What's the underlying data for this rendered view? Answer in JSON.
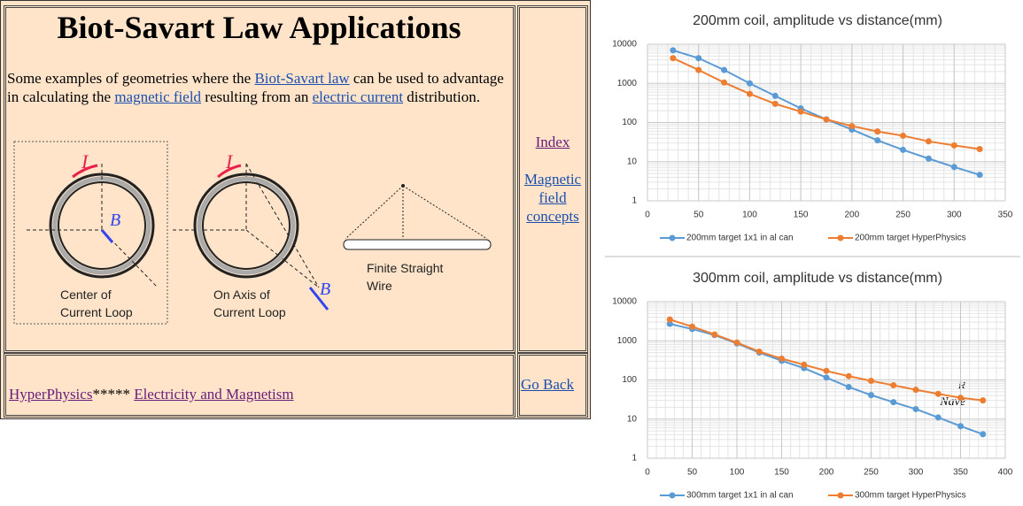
{
  "page": {
    "title": "Biot-Savart Law Applications",
    "intro": {
      "text1": "Some examples of geometries where the",
      "link1": "Biot-Savart law",
      "text2": "can be used to advantage in calculating the",
      "link2": "magnetic field",
      "text3": "resulting from an",
      "link3": "electric current",
      "text4": "distribution."
    },
    "diagram": {
      "loop1_current": "I",
      "loop1_field": "B",
      "loop2_current": "I",
      "loop2_field": "B",
      "loop1_caption": [
        "Center of",
        "Current Loop"
      ],
      "loop2_caption": [
        "On Axis of",
        "Current Loop"
      ],
      "wire_caption": [
        "Finite Straight",
        "Wire"
      ]
    },
    "nav": {
      "index": "Index",
      "concepts": "Magnetic field concepts",
      "back": "Go Back"
    },
    "footer": {
      "site": "HyperPhysics",
      "stars": "*****",
      "section": "Electricity and Magnetism",
      "author_initial": "R",
      "author_name": "Nave"
    }
  },
  "chart_data": [
    {
      "type": "line",
      "title": "200mm coil, amplitude vs distance(mm)",
      "log_y": true,
      "grid": true,
      "minor_grid": true,
      "legend": "bottom",
      "x": [
        25,
        50,
        75,
        100,
        125,
        150,
        175,
        200,
        225,
        250,
        275,
        300,
        325
      ],
      "xlim": [
        0,
        350
      ],
      "xticks": [
        0,
        50,
        100,
        150,
        200,
        250,
        300,
        350
      ],
      "ylim": [
        1,
        10000
      ],
      "yticks": [
        1,
        10,
        100,
        1000,
        10000
      ],
      "series": [
        {
          "name": "200mm target 1x1 in al can",
          "color": "#5b9bd5",
          "values": [
            7000,
            4400,
            2200,
            1000,
            480,
            230,
            120,
            66,
            35,
            20,
            12,
            7.3,
            4.6
          ]
        },
        {
          "name": "200mm target HyperPhysics",
          "color": "#ed7d31",
          "values": [
            4400,
            2200,
            1050,
            540,
            300,
            190,
            120,
            81,
            59,
            46,
            33,
            26,
            21
          ]
        }
      ]
    },
    {
      "type": "line",
      "title": "300mm coil, amplitude vs distance(mm)",
      "log_y": true,
      "grid": true,
      "minor_grid": true,
      "legend": "bottom",
      "x": [
        25,
        50,
        75,
        100,
        125,
        150,
        175,
        200,
        225,
        250,
        275,
        300,
        325,
        350,
        375
      ],
      "xlim": [
        0,
        400
      ],
      "xticks": [
        0,
        50,
        100,
        150,
        200,
        250,
        300,
        350,
        400
      ],
      "ylim": [
        1,
        10000
      ],
      "yticks": [
        1,
        10,
        100,
        1000,
        10000
      ],
      "series": [
        {
          "name": "300mm target 1x1 in al can",
          "color": "#5b9bd5",
          "values": [
            2700,
            2000,
            1400,
            860,
            500,
            310,
            200,
            115,
            66,
            41,
            27,
            18,
            11,
            6.6,
            4.1
          ]
        },
        {
          "name": "300mm target HyperPhysics",
          "color": "#ed7d31",
          "values": [
            3500,
            2300,
            1450,
            900,
            530,
            350,
            245,
            170,
            125,
            95,
            73,
            56,
            44,
            35,
            30
          ]
        }
      ]
    }
  ]
}
